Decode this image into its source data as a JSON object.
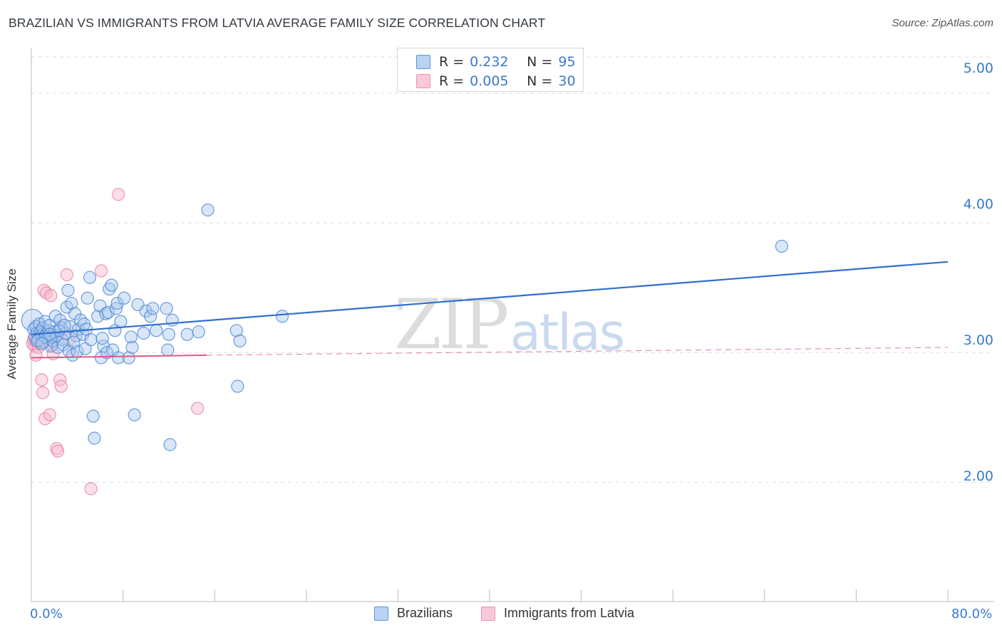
{
  "header": {
    "title": "BRAZILIAN VS IMMIGRANTS FROM LATVIA AVERAGE FAMILY SIZE CORRELATION CHART",
    "source": "Source: ZipAtlas.com"
  },
  "watermark": {
    "part1": "ZIP",
    "part2": "atlas"
  },
  "legend_top": {
    "rows": [
      {
        "r_key": "R =",
        "r_value": "0.232",
        "n_key": "N =",
        "n_value": "95"
      },
      {
        "r_key": "R =",
        "r_value": "0.005",
        "n_key": "N =",
        "n_value": "30"
      }
    ]
  },
  "legend_bottom": {
    "items": [
      "Brazilians",
      "Immigrants from Latvia"
    ]
  },
  "colors": {
    "blue_fill": "#a9c7ee",
    "blue_stroke": "#4a86d4",
    "blue_line": "#2f6fcf",
    "pink_fill": "#f6b9cc",
    "pink_stroke": "#e87ea0",
    "pink_line": "#e0608a",
    "grid": "#dddddd",
    "tick_text": "#3a78cc"
  },
  "chart_data": {
    "type": "scatter",
    "title": "BRAZILIAN VS IMMIGRANTS FROM LATVIA AVERAGE FAMILY SIZE CORRELATION CHART",
    "xlabel": "",
    "ylabel": "Average Family Size",
    "xlim": [
      0,
      80
    ],
    "ylim": [
      1.08,
      5.28
    ],
    "x_tick_labels": [
      "0.0%",
      "80.0%"
    ],
    "y_ticks": [
      2.0,
      3.0,
      4.0,
      5.0
    ],
    "y_tick_labels": [
      "2.00",
      "3.00",
      "4.00",
      "5.00"
    ],
    "grid": "horizontal dashed",
    "legend_placement": "top-center and bottom",
    "series": [
      {
        "name": "Brazilians",
        "R": 0.232,
        "N": 95,
        "trend": {
          "x": [
            0,
            80
          ],
          "y": [
            3.14,
            3.7
          ]
        },
        "points": [
          [
            0.1,
            3.25,
            1.8
          ],
          [
            0.2,
            3.18,
            1
          ],
          [
            0.3,
            3.12,
            1
          ],
          [
            0.4,
            3.2,
            1
          ],
          [
            0.5,
            3.15,
            1
          ],
          [
            0.6,
            3.1,
            1
          ],
          [
            0.7,
            3.22,
            1
          ],
          [
            0.8,
            3.16,
            1
          ],
          [
            0.9,
            3.13,
            1
          ],
          [
            1.0,
            3.19,
            1
          ],
          [
            1.1,
            3.08,
            1
          ],
          [
            1.2,
            3.24,
            1
          ],
          [
            1.3,
            3.14,
            1
          ],
          [
            1.4,
            3.11,
            1
          ],
          [
            1.5,
            3.17,
            1
          ],
          [
            1.6,
            3.21,
            1
          ],
          [
            1.7,
            3.05,
            1
          ],
          [
            1.8,
            3.12,
            1
          ],
          [
            1.9,
            3.09,
            1
          ],
          [
            2.0,
            3.16,
            1
          ],
          [
            2.1,
            3.28,
            1
          ],
          [
            2.2,
            3.13,
            1
          ],
          [
            2.3,
            3.04,
            1
          ],
          [
            2.5,
            3.25,
            1
          ],
          [
            2.6,
            3.19,
            1
          ],
          [
            2.7,
            3.1,
            1
          ],
          [
            2.8,
            3.06,
            1
          ],
          [
            3.0,
            3.15,
            1
          ],
          [
            3.1,
            3.35,
            1
          ],
          [
            3.2,
            3.48,
            1
          ],
          [
            3.3,
            3.01,
            1
          ],
          [
            3.4,
            3.2,
            1
          ],
          [
            3.5,
            3.38,
            1
          ],
          [
            3.6,
            2.98,
            1
          ],
          [
            3.8,
            3.3,
            1
          ],
          [
            3.9,
            3.13,
            1
          ],
          [
            4.0,
            3.01,
            1
          ],
          [
            4.1,
            3.18,
            1
          ],
          [
            4.3,
            3.25,
            1
          ],
          [
            4.5,
            3.14,
            1
          ],
          [
            4.6,
            3.22,
            1
          ],
          [
            4.7,
            3.03,
            1
          ],
          [
            4.9,
            3.42,
            1
          ],
          [
            5.1,
            3.58,
            1
          ],
          [
            5.2,
            3.1,
            1
          ],
          [
            5.4,
            2.51,
            1
          ],
          [
            5.5,
            2.34,
            1
          ],
          [
            5.8,
            3.28,
            1
          ],
          [
            6.0,
            3.36,
            1
          ],
          [
            6.1,
            2.96,
            1
          ],
          [
            6.3,
            3.05,
            1
          ],
          [
            6.5,
            3.3,
            1
          ],
          [
            6.6,
            3.0,
            1
          ],
          [
            6.7,
            3.31,
            1
          ],
          [
            6.8,
            3.49,
            1
          ],
          [
            7.0,
            3.52,
            1
          ],
          [
            7.1,
            3.02,
            1
          ],
          [
            7.3,
            3.17,
            1
          ],
          [
            7.4,
            3.34,
            1
          ],
          [
            7.5,
            3.38,
            1
          ],
          [
            7.6,
            2.96,
            1
          ],
          [
            8.1,
            3.42,
            1
          ],
          [
            8.5,
            2.96,
            1
          ],
          [
            8.7,
            3.12,
            1
          ],
          [
            8.8,
            3.04,
            1
          ],
          [
            9.0,
            2.52,
            1
          ],
          [
            9.3,
            3.37,
            1
          ],
          [
            9.8,
            3.15,
            1
          ],
          [
            10.0,
            3.32,
            1
          ],
          [
            10.4,
            3.28,
            1
          ],
          [
            10.6,
            3.34,
            1
          ],
          [
            10.9,
            3.17,
            1
          ],
          [
            11.8,
            3.34,
            1
          ],
          [
            11.9,
            3.02,
            1
          ],
          [
            12.0,
            3.14,
            1
          ],
          [
            12.1,
            2.29,
            1
          ],
          [
            12.3,
            3.25,
            1
          ],
          [
            13.6,
            3.14,
            1
          ],
          [
            14.6,
            3.16,
            1
          ],
          [
            15.4,
            4.1,
            1
          ],
          [
            17.9,
            3.17,
            1
          ],
          [
            18.0,
            2.74,
            1
          ],
          [
            18.2,
            3.09,
            1
          ],
          [
            21.9,
            3.28,
            1
          ],
          [
            65.5,
            3.82,
            1
          ],
          [
            0.5,
            3.09,
            1
          ],
          [
            1.2,
            3.12,
            1
          ],
          [
            2.4,
            3.17,
            1
          ],
          [
            3.7,
            3.08,
            1
          ],
          [
            4.8,
            3.18,
            1
          ],
          [
            0.9,
            3.07,
            1
          ],
          [
            1.6,
            3.14,
            1
          ],
          [
            2.9,
            3.21,
            1
          ],
          [
            6.2,
            3.11,
            1
          ],
          [
            7.8,
            3.24,
            1
          ]
        ]
      },
      {
        "name": "Immigrants from Latvia",
        "R": 0.005,
        "N": 30,
        "trend": {
          "x": [
            0,
            15.3
          ],
          "y": [
            2.96,
            2.98
          ]
        },
        "trend_dashed": {
          "x": [
            15.3,
            80
          ],
          "y": [
            2.98,
            3.04
          ]
        },
        "points": [
          [
            0.1,
            3.07,
            1
          ],
          [
            0.2,
            3.1,
            1
          ],
          [
            0.3,
            3.05,
            1
          ],
          [
            0.4,
            3.12,
            1
          ],
          [
            0.5,
            3.08,
            1
          ],
          [
            0.6,
            3.04,
            1
          ],
          [
            0.7,
            3.14,
            1
          ],
          [
            0.8,
            3.09,
            1
          ],
          [
            0.9,
            2.79,
            1
          ],
          [
            1.0,
            2.69,
            1
          ],
          [
            1.1,
            3.48,
            1
          ],
          [
            1.2,
            2.49,
            1
          ],
          [
            1.3,
            3.46,
            1
          ],
          [
            1.5,
            3.11,
            1
          ],
          [
            1.6,
            2.52,
            1
          ],
          [
            1.7,
            3.44,
            1
          ],
          [
            1.8,
            3.06,
            1
          ],
          [
            2.0,
            3.1,
            1
          ],
          [
            2.2,
            2.26,
            1
          ],
          [
            2.3,
            2.24,
            1
          ],
          [
            2.5,
            2.79,
            1
          ],
          [
            2.6,
            2.74,
            1
          ],
          [
            3.1,
            3.6,
            1
          ],
          [
            3.3,
            3.1,
            1
          ],
          [
            5.2,
            1.95,
            1
          ],
          [
            6.1,
            3.63,
            1
          ],
          [
            7.6,
            4.22,
            1
          ],
          [
            14.5,
            2.57,
            1
          ],
          [
            0.4,
            2.98,
            1
          ],
          [
            1.9,
            2.99,
            1
          ]
        ]
      }
    ]
  }
}
